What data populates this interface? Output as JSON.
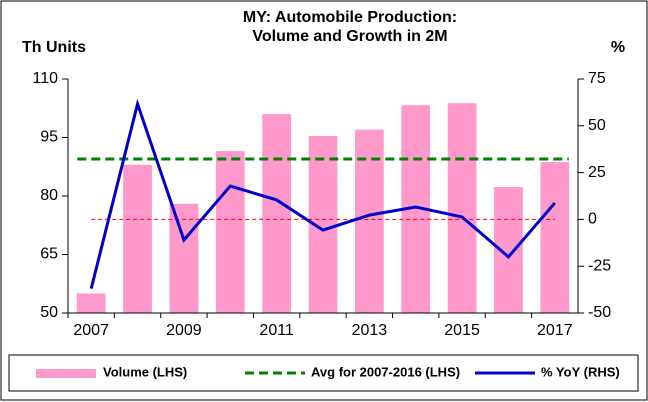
{
  "chart_data": {
    "type": "bar_line",
    "title": [
      "MY: Automobile  Production:",
      "Volume and Growth in 2M"
    ],
    "y_label": "Th Units",
    "y2_label": "%",
    "categories": [
      "2007",
      null,
      "2009",
      null,
      "2011",
      null,
      "2013",
      null,
      "2015",
      null,
      "2017"
    ],
    "series": [
      {
        "name": "Volume (LHS)",
        "kind": "bar",
        "color": "#ff99cc",
        "axis": "y",
        "values": [
          55,
          88,
          78,
          91.5,
          101,
          95.4,
          97,
          103.3,
          103.8,
          82.3,
          88.7
        ]
      },
      {
        "name": "% YoY (RHS)",
        "kind": "line",
        "color": "#0000cc",
        "axis": "y2",
        "values": [
          -37,
          61.7,
          -11,
          17.8,
          10.4,
          -5.7,
          2.3,
          6.6,
          1.3,
          -20,
          8.8
        ]
      }
    ],
    "average": {
      "name": "Avg for 2007-2016 (LHS)",
      "value": 89.5,
      "color": "#008000",
      "axis": "y"
    },
    "reference_line": {
      "value": 0,
      "color": "#ff0000",
      "axis": "y2"
    },
    "ylim": [
      50,
      110
    ],
    "yticks": [
      50,
      65,
      80,
      95,
      110
    ],
    "y2lim": [
      -50,
      75
    ],
    "y2ticks": [
      -50,
      -25,
      0,
      25,
      50,
      75
    ],
    "legend": "bottom"
  }
}
